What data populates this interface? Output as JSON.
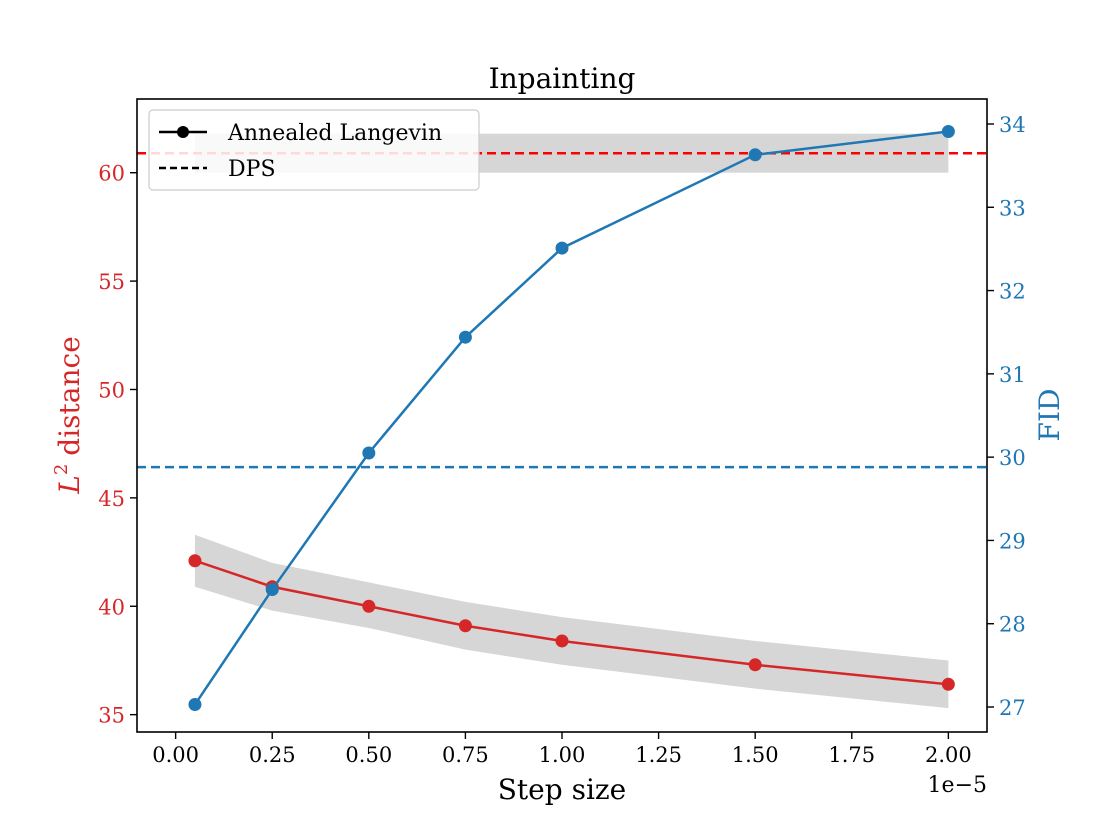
{
  "chart_data": {
    "type": "line",
    "title": "Inpainting",
    "xlabel": "Step size",
    "x_offset_label": "1e−5",
    "ylabel_left": "distance",
    "ylabel_left_symbol": "L",
    "ylabel_left_superscript": "2",
    "ylabel_right": "FID",
    "x": [
      0.05,
      0.25,
      0.5,
      0.75,
      1.0,
      1.5,
      2.0
    ],
    "x_ticks": [
      0.0,
      0.25,
      0.5,
      0.75,
      1.0,
      1.25,
      1.5,
      1.75,
      2.0
    ],
    "x_tick_labels": [
      "0.00",
      "0.25",
      "0.50",
      "0.75",
      "1.00",
      "1.25",
      "1.50",
      "1.75",
      "2.00"
    ],
    "xlim": [
      -0.1,
      2.1
    ],
    "ylim_left": [
      34.2,
      63.4
    ],
    "yticks_left": [
      35,
      40,
      45,
      50,
      55,
      60
    ],
    "ylim_right": [
      26.7,
      34.3
    ],
    "yticks_right": [
      27,
      28,
      29,
      30,
      31,
      32,
      33,
      34
    ],
    "series": [
      {
        "name": "",
        "axis": "left",
        "color": "#d62728",
        "values": [
          42.1,
          40.9,
          40.0,
          39.1,
          38.4,
          37.3,
          36.4
        ],
        "band_lower": [
          40.9,
          39.8,
          39.0,
          38.0,
          37.3,
          36.2,
          35.3
        ],
        "band_upper": [
          43.3,
          42.0,
          41.1,
          40.2,
          39.5,
          38.4,
          37.5
        ]
      },
      {
        "name": "",
        "axis": "right",
        "color": "#1f77b4",
        "values": [
          27.03,
          28.41,
          30.05,
          31.44,
          32.51,
          33.63,
          33.91
        ]
      }
    ],
    "reference_lines": [
      {
        "axis": "left",
        "value": 60.9,
        "color": "#ff0000",
        "style": "dashed",
        "band_lower": 60.0,
        "band_upper": 61.8
      },
      {
        "axis": "right",
        "value": 29.88,
        "color": "#1f77b4",
        "style": "dashed"
      }
    ],
    "band_color": "#d6d6d6",
    "left_axis_color": "#d62728",
    "right_axis_color": "#1f77b4",
    "legend": {
      "position": "top-left",
      "entries": [
        {
          "label": "Annealed Langevin",
          "style": "solid-marker"
        },
        {
          "label": "DPS",
          "style": "dashed"
        }
      ]
    },
    "grid": false
  }
}
